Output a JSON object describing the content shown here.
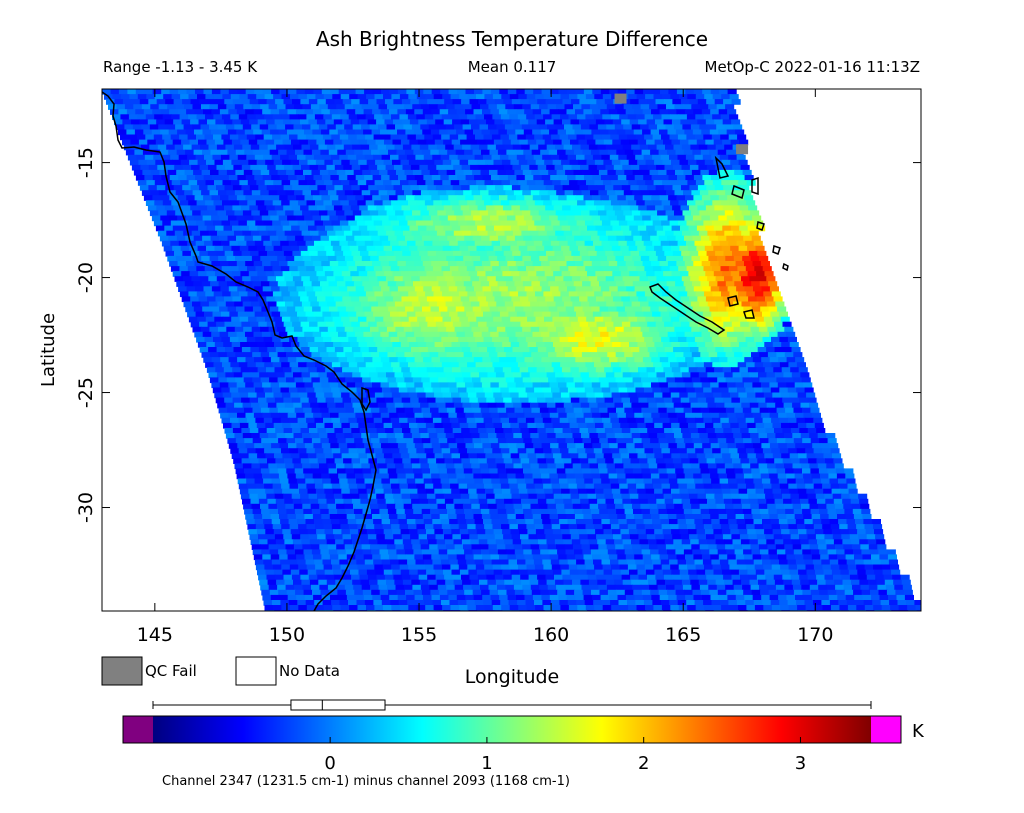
{
  "chart_data": {
    "type": "heatmap",
    "title": "Ash Brightness Temperature Difference",
    "subtitle_left": "Range -1.13 - 3.45 K",
    "subtitle_center": "Mean 0.117",
    "subtitle_right": "MetOp-C 2022-01-16 11:13Z",
    "xlabel": "Longitude",
    "ylabel": "Latitude",
    "xlim": [
      143,
      174
    ],
    "ylim": [
      -34.5,
      -11.8
    ],
    "xticks": [
      145,
      150,
      155,
      160,
      165,
      170
    ],
    "xtick_labels": [
      "145",
      "150",
      "155",
      "160",
      "165",
      "170"
    ],
    "yticks": [
      -15,
      -20,
      -25,
      -30
    ],
    "ytick_labels": [
      "-15",
      "-20",
      "-25",
      "-30"
    ],
    "grid": false,
    "swath_edges": {
      "west": [
        [
          143.0,
          -11.8
        ],
        [
          145.3,
          -18.5
        ],
        [
          147.0,
          -24.0
        ],
        [
          148.0,
          -28.0
        ],
        [
          149.2,
          -34.5
        ]
      ],
      "east": [
        [
          166.8,
          -11.8
        ],
        [
          167.6,
          -17.0
        ],
        [
          168.8,
          -22.0
        ],
        [
          170.3,
          -26.5
        ],
        [
          174.0,
          -34.5
        ]
      ]
    },
    "features": [
      {
        "label": "ash plume (yellow-green)",
        "center": [
          158.5,
          -20.8
        ],
        "rx": 7.2,
        "ry": 3.6,
        "value": 1.3
      },
      {
        "label": "plume west lobe",
        "center": [
          155.5,
          -21.2
        ],
        "rx": 3.5,
        "ry": 2.5,
        "value": 1.5
      },
      {
        "label": "plume north arc",
        "center": [
          157.5,
          -17.6
        ],
        "rx": 4.0,
        "ry": 1.3,
        "value": 1.4
      },
      {
        "label": "plume south",
        "center": [
          161.5,
          -22.5
        ],
        "rx": 3.0,
        "ry": 1.6,
        "value": 1.7
      },
      {
        "label": "hot edge orange",
        "center": [
          166.5,
          -19.5
        ],
        "rx": 1.6,
        "ry": 3.4,
        "value": 2.4
      },
      {
        "label": "hot edge red",
        "center": [
          167.6,
          -19.8
        ],
        "rx": 1.2,
        "ry": 2.4,
        "value": 3.0
      }
    ],
    "qc_fail_cells": [
      [
        162.4,
        -12.0
      ],
      [
        167.0,
        -14.2
      ]
    ],
    "colorbar": {
      "min": -1.13,
      "max": 3.45,
      "ticks": [
        0,
        1,
        2,
        3
      ],
      "tick_labels": [
        "0",
        "1",
        "2",
        "3"
      ],
      "unit": "K",
      "colors": [
        "#000080",
        "#0000ff",
        "#0080ff",
        "#00ffff",
        "#80ff80",
        "#ffff00",
        "#ff8000",
        "#ff0000",
        "#800000"
      ],
      "under_color": "#800080",
      "over_color": "#ff00ff",
      "boxplot": {
        "whisker_low": -1.13,
        "q1": -0.25,
        "median": -0.05,
        "q3": 0.35,
        "whisker_high": 3.45
      }
    },
    "legend": {
      "qc_fail_label": "QC Fail",
      "qc_fail_color": "#808080",
      "no_data_label": "No Data",
      "no_data_color": "#ffffff"
    },
    "footnote": "Channel 2347 (1231.5 cm-1) minus channel 2093 (1168 cm-1)"
  }
}
